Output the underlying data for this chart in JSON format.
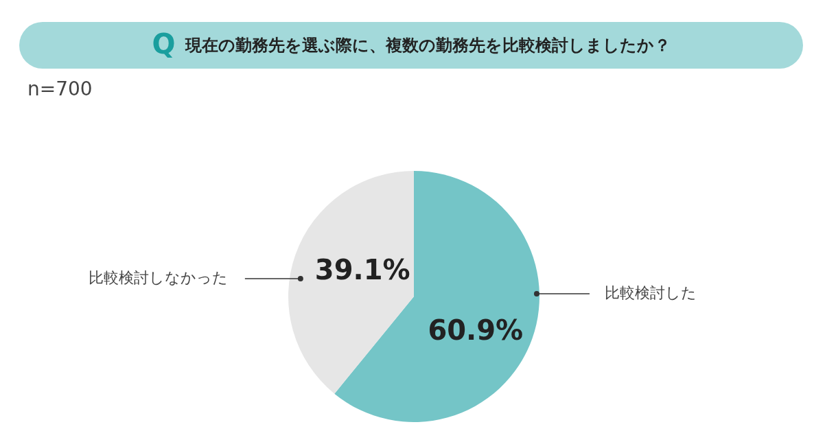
{
  "chart_data": {
    "type": "pie",
    "title": "Q 現在の勤務先を選ぶ際に、複数の勤務先を比較検討しましたか？",
    "annotations": [
      "n=700"
    ],
    "categories": [
      "比較検討した",
      "比較検討しなかった"
    ],
    "values": [
      60.9,
      39.1
    ],
    "colors": [
      "#74c5c7",
      "#e6e6e6"
    ],
    "value_labels": [
      "60.9%",
      "39.1%"
    ]
  }
}
